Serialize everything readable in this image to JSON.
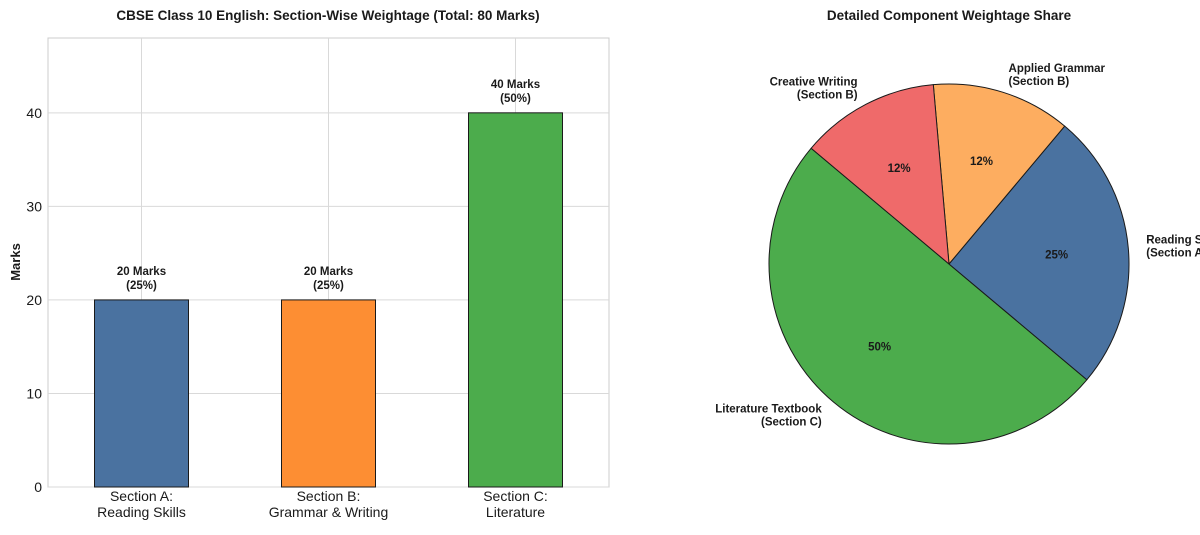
{
  "chart_data": [
    {
      "type": "bar",
      "title": "CBSE Class 10 English: Section-Wise Weightage (Total: 80 Marks)",
      "xlabel": "",
      "ylabel": "Marks",
      "ylim": [
        0,
        48
      ],
      "yticks": [
        0,
        10,
        20,
        30,
        40
      ],
      "grid": true,
      "categories": [
        [
          "Section A:",
          "Reading Skills"
        ],
        [
          "Section B:",
          "Grammar & Writing"
        ],
        [
          "Section C:",
          "Literature"
        ]
      ],
      "values": [
        20,
        20,
        40
      ],
      "colors": [
        "#4a72a0",
        "#fd8e33",
        "#4cac4c"
      ],
      "data_labels": [
        [
          "20 Marks",
          "(25%)"
        ],
        [
          "20 Marks",
          "(25%)"
        ],
        [
          "40 Marks",
          "(50%)"
        ]
      ]
    },
    {
      "type": "pie",
      "title": "Detailed Component Weightage Share",
      "start_angle_deg": 140,
      "direction": "counterclockwise",
      "slices": [
        {
          "label": [
            "Literature Textbook",
            "(Section C)"
          ],
          "value": 40,
          "pct_label": "50%",
          "color": "#4cac4c"
        },
        {
          "label": [
            "Reading Skills",
            "(Section A)"
          ],
          "value": 20,
          "pct_label": "25%",
          "color": "#4a72a0"
        },
        {
          "label": [
            "Applied Grammar",
            "(Section B)"
          ],
          "value": 10,
          "pct_label": "12%",
          "color": "#fdad60"
        },
        {
          "label": [
            "Creative Writing",
            "(Section B)"
          ],
          "value": 10,
          "pct_label": "12%",
          "color": "#ef6a6a"
        }
      ]
    }
  ]
}
